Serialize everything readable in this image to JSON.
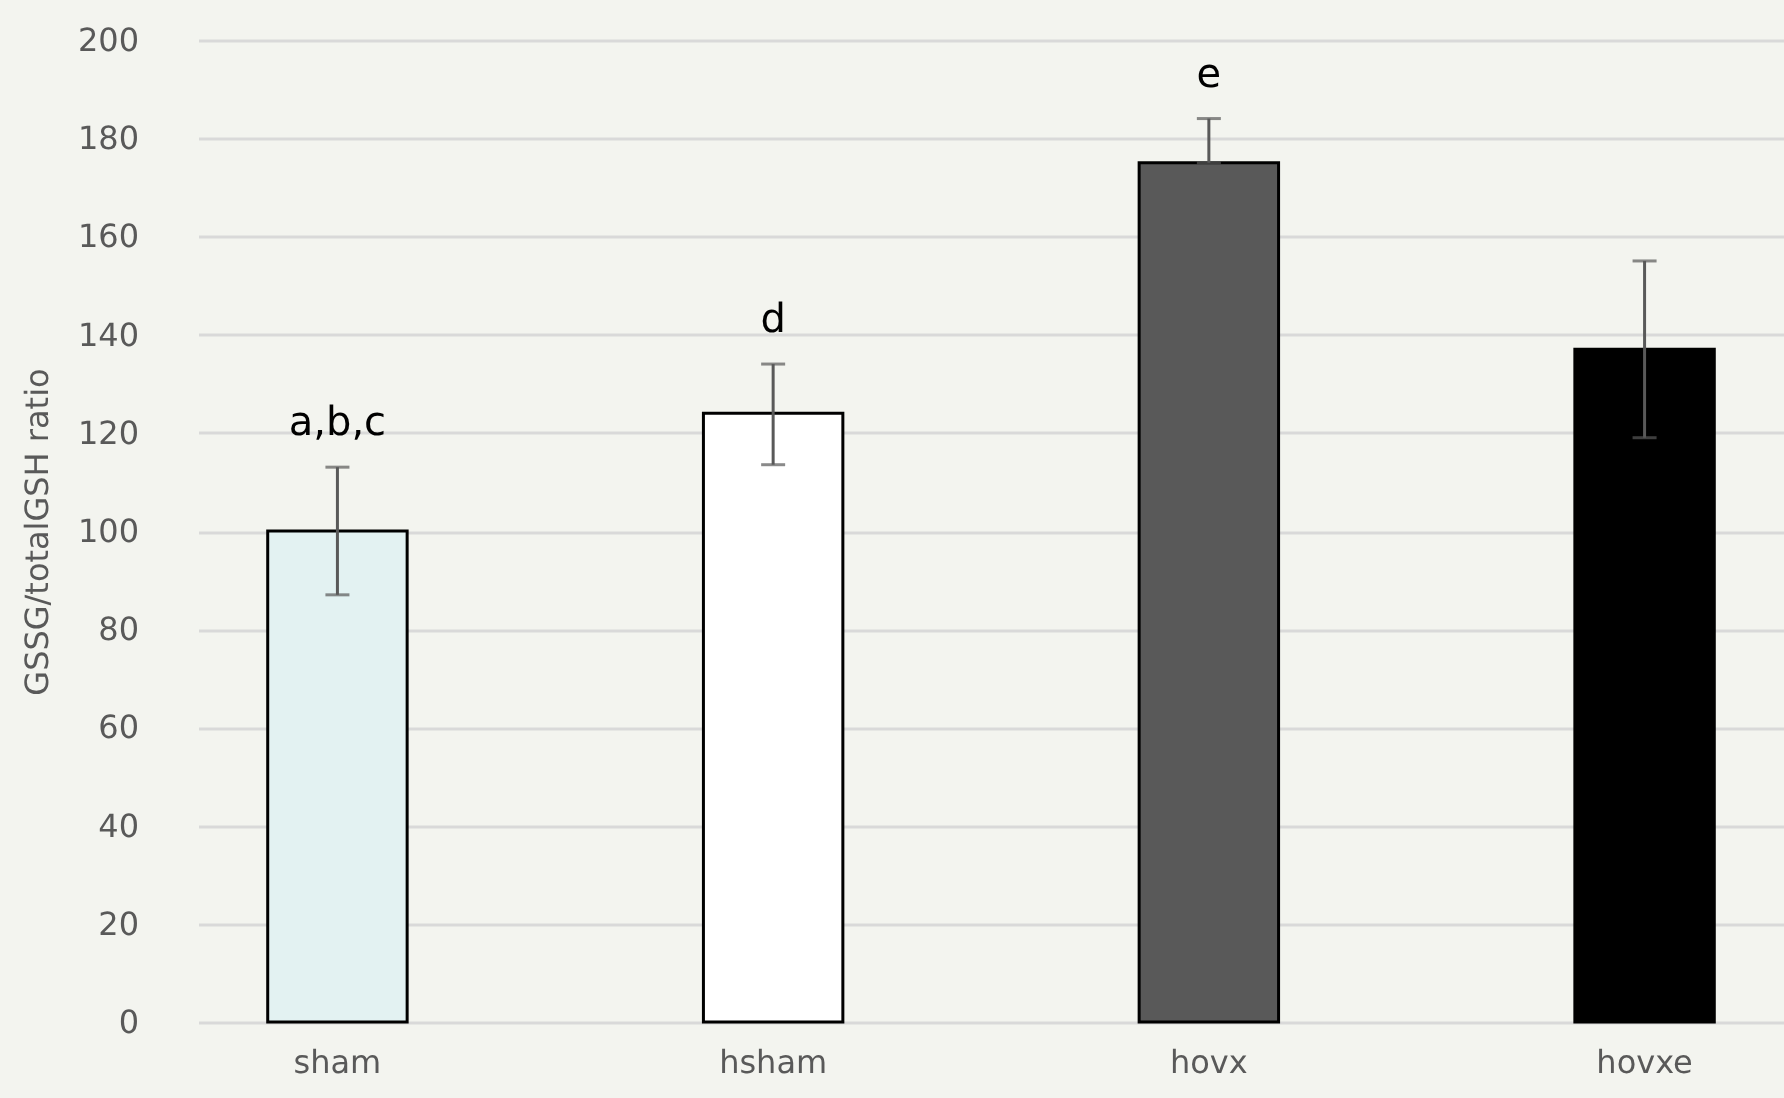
{
  "chart_data": {
    "type": "bar",
    "ylabel": "GSSG/totalGSH ratio",
    "categories": [
      "sham",
      "hsham",
      "hovx",
      "hovxe"
    ],
    "values": [
      100,
      124,
      175,
      137
    ],
    "colors": [
      "#e3f2f2",
      "#ffffff",
      "#595959",
      "#000000"
    ],
    "errors": [
      [
        87,
        113
      ],
      [
        113.5,
        134
      ],
      [
        175,
        184
      ],
      [
        119,
        155
      ]
    ],
    "annotations": [
      "a,b,c",
      "d",
      "e"
    ],
    "ylim": [
      0,
      200
    ],
    "yticks": [
      0,
      20,
      40,
      60,
      80,
      100,
      120,
      140,
      160,
      180,
      200
    ],
    "grid": "y"
  }
}
